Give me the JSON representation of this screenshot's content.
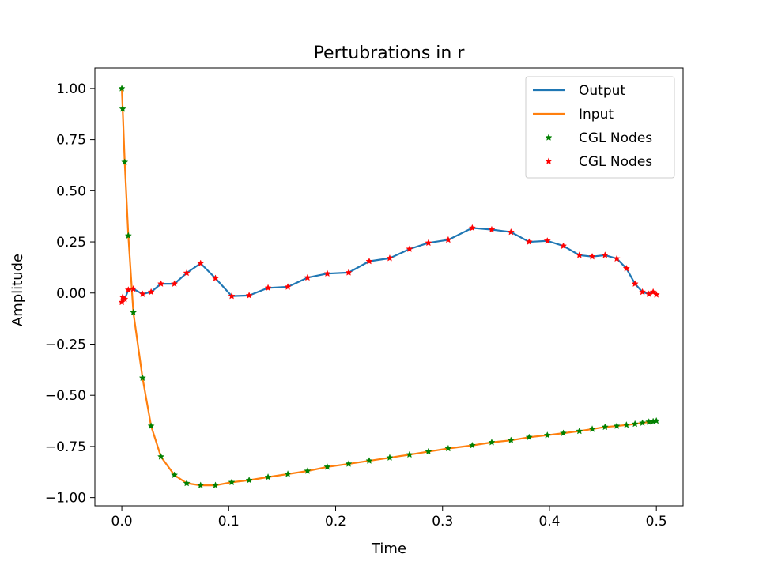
{
  "chart_data": {
    "type": "line",
    "title": "Pertubrations in r",
    "xlabel": "Time",
    "ylabel": "Amplitude",
    "xlim": [
      -0.0252,
      0.525
    ],
    "ylim": [
      -1.04,
      1.1
    ],
    "xticks": [
      0.0,
      0.1,
      0.2,
      0.3,
      0.4,
      0.5
    ],
    "xtick_labels": [
      "0.0",
      "0.1",
      "0.2",
      "0.3",
      "0.4",
      "0.5"
    ],
    "yticks": [
      1.0,
      0.75,
      0.5,
      0.25,
      0.0,
      -0.25,
      -0.5,
      -0.75,
      -1.0
    ],
    "ytick_labels": [
      "1.00",
      "0.75",
      "0.50",
      "0.25",
      "0.00",
      "−0.25",
      "−0.50",
      "−0.75",
      "−1.00"
    ],
    "grid": false,
    "legend_position": "top-right",
    "series": [
      {
        "name": "Output",
        "kind": "line",
        "color": "#1f77b4",
        "x": [
          0.0,
          0.0008,
          0.0027,
          0.0061,
          0.0108,
          0.0194,
          0.0274,
          0.0366,
          0.0492,
          0.0607,
          0.0737,
          0.0876,
          0.1028,
          0.1191,
          0.1368,
          0.1553,
          0.1737,
          0.1922,
          0.2122,
          0.2314,
          0.2506,
          0.2691,
          0.2868,
          0.3053,
          0.3278,
          0.346,
          0.364,
          0.381,
          0.398,
          0.413,
          0.428,
          0.44,
          0.452,
          0.463,
          0.472,
          0.48,
          0.487,
          0.493,
          0.497,
          0.5
        ],
        "y": [
          -0.045,
          -0.02,
          -0.03,
          0.015,
          0.02,
          -0.005,
          0.005,
          0.045,
          0.045,
          0.098,
          0.145,
          0.072,
          -0.015,
          -0.012,
          0.025,
          0.03,
          0.075,
          0.095,
          0.1,
          0.155,
          0.17,
          0.215,
          0.245,
          0.26,
          0.318,
          0.31,
          0.298,
          0.25,
          0.255,
          0.23,
          0.185,
          0.178,
          0.185,
          0.168,
          0.12,
          0.045,
          0.005,
          -0.005,
          0.005,
          -0.008
        ]
      },
      {
        "name": "Input",
        "kind": "line",
        "color": "#ff7f0e",
        "x": [
          0.0,
          0.0008,
          0.0027,
          0.0061,
          0.0108,
          0.0194,
          0.0274,
          0.0366,
          0.0492,
          0.0607,
          0.0737,
          0.0876,
          0.1028,
          0.1191,
          0.1368,
          0.1553,
          0.1737,
          0.1922,
          0.2122,
          0.2314,
          0.2506,
          0.2691,
          0.2868,
          0.3053,
          0.3278,
          0.346,
          0.364,
          0.381,
          0.398,
          0.413,
          0.428,
          0.44,
          0.452,
          0.463,
          0.472,
          0.48,
          0.487,
          0.493,
          0.497,
          0.5
        ],
        "y": [
          1.0,
          0.9,
          0.64,
          0.28,
          -0.095,
          -0.415,
          -0.65,
          -0.8,
          -0.89,
          -0.93,
          -0.94,
          -0.94,
          -0.925,
          -0.915,
          -0.9,
          -0.885,
          -0.87,
          -0.85,
          -0.835,
          -0.82,
          -0.805,
          -0.79,
          -0.775,
          -0.76,
          -0.745,
          -0.73,
          -0.72,
          -0.705,
          -0.695,
          -0.685,
          -0.675,
          -0.665,
          -0.655,
          -0.65,
          -0.645,
          -0.64,
          -0.635,
          -0.63,
          -0.628,
          -0.625
        ]
      },
      {
        "name": "CGL Nodes",
        "kind": "scatter",
        "color": "#008000",
        "ref": "Input"
      },
      {
        "name": "CGL Nodes",
        "kind": "scatter",
        "color": "#ff0000",
        "ref": "Output"
      }
    ]
  }
}
